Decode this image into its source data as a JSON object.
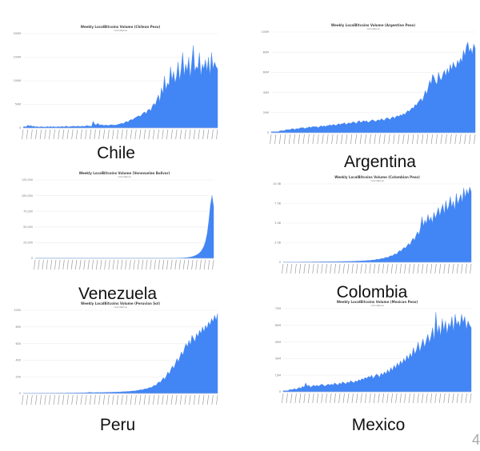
{
  "accent_color": "#4285f4",
  "chart_data": [
    {
      "id": "chile",
      "type": "area",
      "title": "Weekly LocalBitcoins Volume (Chilean Peso)",
      "subtitle": "coin.dance",
      "ylim": [
        0,
        200
      ],
      "yticks": [
        "0",
        "50M",
        "100M",
        "150M",
        "200M"
      ],
      "grid": true,
      "values": [
        2,
        3,
        2,
        6,
        4,
        5,
        3,
        4,
        2,
        3,
        2,
        2,
        3,
        2,
        2,
        2,
        3,
        2,
        3,
        2,
        3,
        2,
        2,
        3,
        2,
        3,
        3,
        2,
        4,
        3,
        2,
        3,
        3,
        4,
        3,
        3,
        4,
        3,
        3,
        4,
        3,
        4,
        5,
        4,
        4,
        3,
        14,
        8,
        6,
        10,
        7,
        6,
        7,
        5,
        6,
        6,
        5,
        6,
        7,
        6,
        6,
        6,
        7,
        8,
        9,
        10,
        9,
        12,
        14,
        12,
        16,
        18,
        17,
        20,
        22,
        24,
        26,
        24,
        28,
        32,
        34,
        30,
        38,
        40,
        36,
        46,
        52,
        48,
        60,
        70,
        55,
        85,
        72,
        110,
        80,
        95,
        90,
        130,
        100,
        120,
        95,
        110,
        140,
        100,
        125,
        160,
        110,
        135,
        120,
        150,
        105,
        140,
        175,
        120,
        130,
        125,
        160,
        110,
        135,
        125,
        145,
        120,
        150,
        110,
        160,
        125,
        140,
        130,
        125
      ]
    },
    {
      "id": "argentina",
      "type": "area",
      "title": "Weekly LocalBitcoins Volume (Argentine Peso)",
      "subtitle": "coin.dance",
      "ylim": [
        0,
        100
      ],
      "yticks": [
        "0",
        "20M",
        "40M",
        "60M",
        "80M",
        "100M"
      ],
      "grid": true,
      "values": [
        1,
        1,
        1,
        1,
        1,
        1,
        2,
        2,
        2,
        2,
        3,
        3,
        3,
        3,
        4,
        4,
        3,
        4,
        4,
        4,
        5,
        5,
        5,
        4,
        5,
        5,
        6,
        5,
        6,
        6,
        6,
        6,
        5,
        6,
        7,
        6,
        7,
        6,
        7,
        7,
        8,
        7,
        8,
        8,
        7,
        8,
        9,
        8,
        9,
        9,
        10,
        8,
        9,
        10,
        9,
        10,
        11,
        10,
        9,
        11,
        12,
        10,
        11,
        12,
        11,
        12,
        10,
        11,
        12,
        13,
        12,
        11,
        12,
        13,
        12,
        14,
        13,
        12,
        14,
        15,
        14,
        13,
        15,
        16,
        14,
        16,
        17,
        16,
        18,
        17,
        19,
        18,
        20,
        22,
        21,
        23,
        25,
        24,
        28,
        27,
        30,
        32,
        34,
        31,
        36,
        42,
        38,
        45,
        52,
        48,
        58,
        55,
        50,
        48,
        60,
        54,
        52,
        58,
        62,
        56,
        64,
        58,
        68,
        62,
        70,
        66,
        64,
        72,
        68,
        74,
        70,
        82,
        76,
        86,
        90,
        80,
        84,
        78,
        88,
        84
      ]
    },
    {
      "id": "venezuela",
      "type": "area",
      "title": "Weekly LocalBitcoins Volume (Venezuelan Bolivar)",
      "subtitle": "coin.dance",
      "ylim": [
        0,
        125
      ],
      "yticks": [
        "0",
        "25,000",
        "50,000",
        "75,000",
        "100,000",
        "125,000"
      ],
      "grid": true,
      "values": [
        0.2,
        0.2,
        0.2,
        0.2,
        0.2,
        0.2,
        0.2,
        0.2,
        0.2,
        0.2,
        0.2,
        0.2,
        0.2,
        0.2,
        0.2,
        0.2,
        0.2,
        0.2,
        0.2,
        0.2,
        0.2,
        0.2,
        0.2,
        0.2,
        0.2,
        0.2,
        0.2,
        0.2,
        0.2,
        0.2,
        0.2,
        0.2,
        0.2,
        0.2,
        0.2,
        0.2,
        0.2,
        0.2,
        0.2,
        0.2,
        0.2,
        0.2,
        0.2,
        0.2,
        0.2,
        0.2,
        0.2,
        0.2,
        0.2,
        0.2,
        0.2,
        0.2,
        0.2,
        0.2,
        0.2,
        0.2,
        0.2,
        0.2,
        0.2,
        0.2,
        0.2,
        0.2,
        0.2,
        0.2,
        0.2,
        0.2,
        0.2,
        0.2,
        0.2,
        0.2,
        0.2,
        0.2,
        0.2,
        0.2,
        0.2,
        0.2,
        0.2,
        0.2,
        0.2,
        0.2,
        0.2,
        0.2,
        0.2,
        0.2,
        0.2,
        0.2,
        0.2,
        0.3,
        0.3,
        0.3,
        0.4,
        0.4,
        0.5,
        0.6,
        0.7,
        0.9,
        1.1,
        1.4,
        1.8,
        2.3,
        3,
        4,
        5,
        6.5,
        8.5,
        11,
        15,
        20,
        28,
        40,
        60,
        85,
        100,
        82
      ]
    },
    {
      "id": "colombia",
      "type": "area",
      "title": "Weekly LocalBitcoins Volume (Colombian Peso)",
      "subtitle": "coin.dance",
      "ylim": [
        0,
        10
      ],
      "yticks": [
        "0",
        "2.5B",
        "5.0B",
        "7.5B",
        "10.0B"
      ],
      "grid": true,
      "values": [
        0.02,
        0.02,
        0.03,
        0.02,
        0.03,
        0.03,
        0.02,
        0.03,
        0.03,
        0.03,
        0.04,
        0.03,
        0.04,
        0.04,
        0.05,
        0.04,
        0.05,
        0.05,
        0.04,
        0.05,
        0.06,
        0.05,
        0.06,
        0.06,
        0.05,
        0.06,
        0.07,
        0.06,
        0.07,
        0.06,
        0.07,
        0.08,
        0.07,
        0.08,
        0.08,
        0.09,
        0.08,
        0.09,
        0.1,
        0.09,
        0.1,
        0.11,
        0.1,
        0.12,
        0.11,
        0.12,
        0.13,
        0.14,
        0.13,
        0.15,
        0.16,
        0.15,
        0.17,
        0.18,
        0.2,
        0.19,
        0.22,
        0.24,
        0.23,
        0.26,
        0.3,
        0.28,
        0.34,
        0.38,
        0.36,
        0.42,
        0.5,
        0.46,
        0.56,
        0.64,
        0.6,
        0.72,
        0.85,
        0.8,
        0.96,
        1.1,
        1.0,
        1.3,
        1.5,
        1.4,
        1.7,
        1.9,
        1.8,
        2.1,
        2.4,
        2.2,
        2.7,
        3.1,
        2.8,
        3.4,
        3.9,
        3.5,
        4.4,
        5.8,
        4.6,
        5.4,
        4.9,
        6.1,
        5.2,
        5.8,
        5.0,
        6.4,
        5.6,
        6.2,
        7.0,
        5.9,
        6.8,
        7.4,
        6.1,
        7.9,
        6.6,
        7.2,
        8.4,
        7.0,
        7.8,
        6.6,
        8.8,
        7.4,
        8.0,
        8.7,
        7.6,
        9.5,
        8.2,
        9.3,
        8.6,
        9.6,
        9.0
      ]
    },
    {
      "id": "peru",
      "type": "area",
      "title": "Weekly LocalBitcoins Volume (Peruvian Sol)",
      "subtitle": "coin.dance",
      "ylim": [
        0,
        1000
      ],
      "yticks": [
        "0",
        "200",
        "400",
        "600",
        "800",
        "1000"
      ],
      "grid": true,
      "values": [
        2,
        2,
        3,
        2,
        3,
        2,
        3,
        3,
        2,
        3,
        2,
        3,
        3,
        4,
        3,
        3,
        4,
        3,
        3,
        4,
        4,
        3,
        4,
        4,
        5,
        4,
        5,
        4,
        5,
        5,
        6,
        5,
        6,
        5,
        6,
        6,
        7,
        6,
        7,
        8,
        7,
        8,
        9,
        10,
        14,
        12,
        10,
        9,
        11,
        12,
        10,
        11,
        12,
        11,
        13,
        12,
        14,
        13,
        15,
        14,
        16,
        15,
        17,
        18,
        16,
        19,
        20,
        22,
        21,
        24,
        23,
        26,
        28,
        30,
        29,
        33,
        36,
        40,
        44,
        42,
        50,
        56,
        54,
        64,
        72,
        70,
        84,
        100,
        92,
        120,
        140,
        130,
        160,
        190,
        170,
        210,
        260,
        230,
        290,
        330,
        300,
        360,
        420,
        380,
        440,
        500,
        460,
        540,
        600,
        560,
        640,
        580,
        700,
        660,
        620,
        720,
        680,
        760,
        720,
        800,
        740,
        820,
        780,
        860,
        820,
        900,
        860,
        940,
        880,
        960
      ]
    },
    {
      "id": "mexico",
      "type": "area",
      "title": "Weekly LocalBitcoins Volume (Mexican Peso)",
      "subtitle": "coin.dance",
      "ylim": [
        0,
        75
      ],
      "yticks": [
        "0",
        "15M",
        "30M",
        "45M",
        "60M",
        "75M"
      ],
      "grid": true,
      "values": [
        1,
        1,
        1,
        1,
        2,
        2,
        2,
        3,
        2,
        3,
        4,
        3,
        5,
        4,
        8,
        5,
        6,
        4,
        5,
        6,
        5,
        6,
        5,
        6,
        7,
        6,
        5,
        6,
        7,
        6,
        7,
        6,
        8,
        7,
        6,
        8,
        7,
        9,
        8,
        7,
        9,
        8,
        10,
        9,
        8,
        10,
        9,
        11,
        10,
        12,
        11,
        13,
        12,
        14,
        13,
        15,
        12,
        14,
        16,
        15,
        13,
        17,
        15,
        18,
        16,
        20,
        17,
        22,
        19,
        24,
        21,
        26,
        23,
        28,
        25,
        30,
        27,
        33,
        29,
        35,
        31,
        40,
        34,
        38,
        45,
        36,
        42,
        48,
        40,
        46,
        52,
        44,
        50,
        58,
        46,
        72,
        52,
        60,
        50,
        66,
        55,
        64,
        52,
        62,
        58,
        68,
        54,
        70,
        60,
        64,
        58,
        70,
        62,
        68,
        56,
        64,
        60,
        58
      ]
    }
  ],
  "labels": {
    "chile": "Chile",
    "argentina": "Argentina",
    "venezuela": "Venezuela",
    "colombia": "Colombia",
    "peru": "Peru",
    "mexico": "Mexico"
  },
  "page_corner": "4"
}
